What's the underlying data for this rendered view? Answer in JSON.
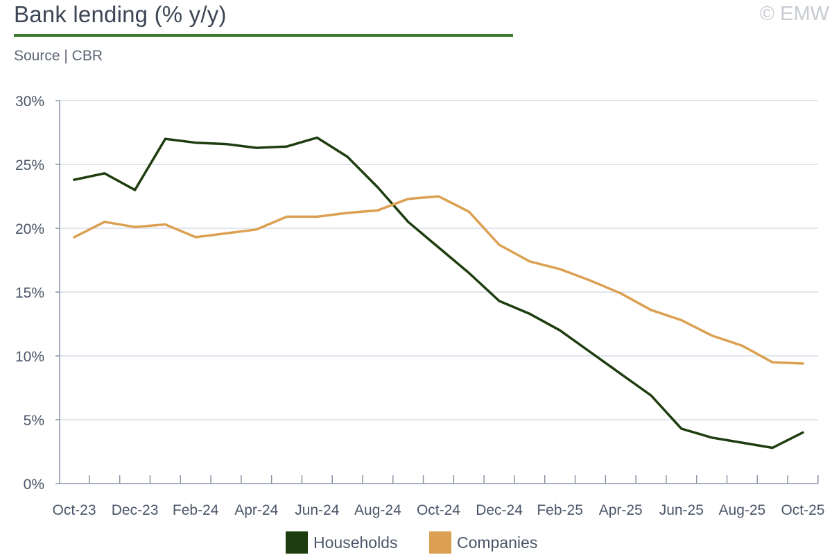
{
  "header": {
    "title": "Bank lending (% y/y)",
    "source": "Source | CBR",
    "copyright": "© EMW"
  },
  "colors": {
    "accent_rule": "#3a7a2f",
    "households": "#1e3d0f",
    "companies": "#dba052",
    "grid": "#d5dde6",
    "axis": "#8a94a6",
    "text": "#4a5568"
  },
  "chart_data": {
    "type": "line",
    "title": "Bank lending (% y/y)",
    "xlabel": "",
    "ylabel": "",
    "ylim": [
      0,
      30
    ],
    "yticks": [
      0,
      5,
      10,
      15,
      20,
      25,
      30
    ],
    "ytick_labels": [
      "0%",
      "5%",
      "10%",
      "15%",
      "20%",
      "25%",
      "30%"
    ],
    "grid": true,
    "legend_position": "bottom-center",
    "x": [
      "Oct-23",
      "Nov-23",
      "Dec-23",
      "Jan-24",
      "Feb-24",
      "Mar-24",
      "Apr-24",
      "May-24",
      "Jun-24",
      "Jul-24",
      "Aug-24",
      "Sep-24",
      "Oct-24",
      "Nov-24",
      "Dec-24",
      "Jan-25",
      "Feb-25",
      "Mar-25",
      "Apr-25",
      "May-25",
      "Jun-25",
      "Jul-25",
      "Aug-25",
      "Sep-25",
      "Oct-25"
    ],
    "xtick_labels": [
      "Oct-23",
      "Dec-23",
      "Feb-24",
      "Apr-24",
      "Jun-24",
      "Aug-24",
      "Oct-24",
      "Dec-24",
      "Feb-25",
      "Apr-25",
      "Jun-25",
      "Aug-25",
      "Oct-25"
    ],
    "series": [
      {
        "name": "Households",
        "color": "#1e3d0f",
        "values": [
          23.8,
          24.3,
          23.0,
          27.0,
          26.7,
          26.6,
          26.3,
          26.4,
          27.1,
          25.6,
          23.2,
          20.5,
          18.5,
          16.5,
          14.3,
          13.3,
          12.0,
          10.3,
          8.6,
          6.9,
          4.3,
          3.6,
          3.2,
          2.8,
          4.0
        ]
      },
      {
        "name": "Companies",
        "color": "#dba052",
        "values": [
          19.3,
          20.5,
          20.1,
          20.3,
          19.3,
          19.6,
          19.9,
          20.9,
          20.9,
          21.2,
          21.4,
          22.3,
          22.5,
          21.3,
          18.7,
          17.4,
          16.8,
          15.9,
          14.9,
          13.6,
          12.8,
          11.6,
          10.8,
          9.5,
          9.4
        ]
      }
    ]
  }
}
